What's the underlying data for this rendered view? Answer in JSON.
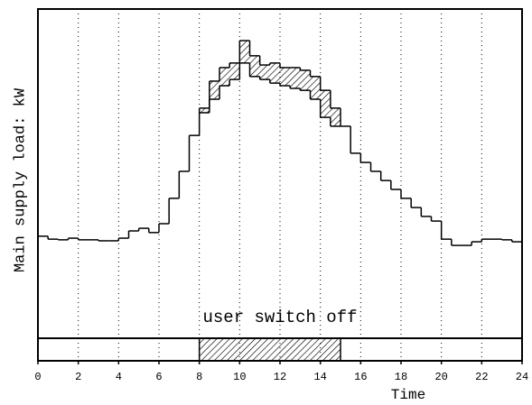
{
  "chart_data": {
    "type": "step",
    "xlabel": "Time",
    "ylabel": "Main supply load: kW",
    "xlim": [
      0,
      24
    ],
    "xticks": [
      0,
      2,
      4,
      6,
      8,
      10,
      12,
      14,
      16,
      18,
      20,
      22,
      24
    ],
    "ylim": [
      0,
      100
    ],
    "grid": true,
    "x": [
      0,
      0.5,
      1,
      1.5,
      2,
      2.5,
      3,
      3.5,
      4,
      4.5,
      5,
      5.5,
      6,
      6.5,
      7,
      7.5,
      8,
      8.5,
      9,
      9.5,
      10,
      10.5,
      11,
      11.5,
      12,
      12.5,
      13,
      13.5,
      14,
      14.5,
      15,
      15.5,
      16,
      16.5,
      17,
      17.5,
      18,
      18.5,
      19,
      19.5,
      20,
      20.5,
      21,
      21.5,
      22,
      22.5,
      23,
      23.5
    ],
    "series": [
      {
        "color": "#000000",
        "values": [
          31.0,
          30.1,
          29.9,
          30.4,
          29.9,
          29.9,
          29.6,
          29.6,
          30.4,
          32.6,
          33.4,
          32.1,
          34.8,
          42.5,
          50.7,
          61.6,
          69.9,
          78.1,
          82.2,
          83.6,
          90.4,
          85.8,
          83.0,
          83.6,
          82.2,
          82.2,
          81.4,
          79.5,
          75.3,
          69.9,
          64.4,
          56.2,
          53.4,
          50.7,
          47.9,
          45.2,
          42.5,
          39.7,
          37.0,
          35.6,
          30.1,
          28.2,
          28.2,
          29.3,
          30.1,
          30.1,
          29.9,
          29.3
        ]
      },
      {
        "color": "#000000",
        "values": [
          null,
          null,
          null,
          null,
          null,
          null,
          null,
          null,
          null,
          null,
          null,
          null,
          null,
          null,
          null,
          null,
          68.5,
          72.6,
          76.7,
          78.6,
          83.6,
          79.5,
          78.6,
          77.5,
          76.7,
          75.9,
          75.3,
          72.6,
          67.1,
          64.4,
          null,
          null,
          null,
          null,
          null,
          null,
          null,
          null,
          null,
          null,
          null,
          null,
          null,
          null,
          null,
          null,
          null,
          null
        ]
      }
    ],
    "switch_off": {
      "label": "user switch off",
      "start": 8,
      "end": 15
    }
  }
}
